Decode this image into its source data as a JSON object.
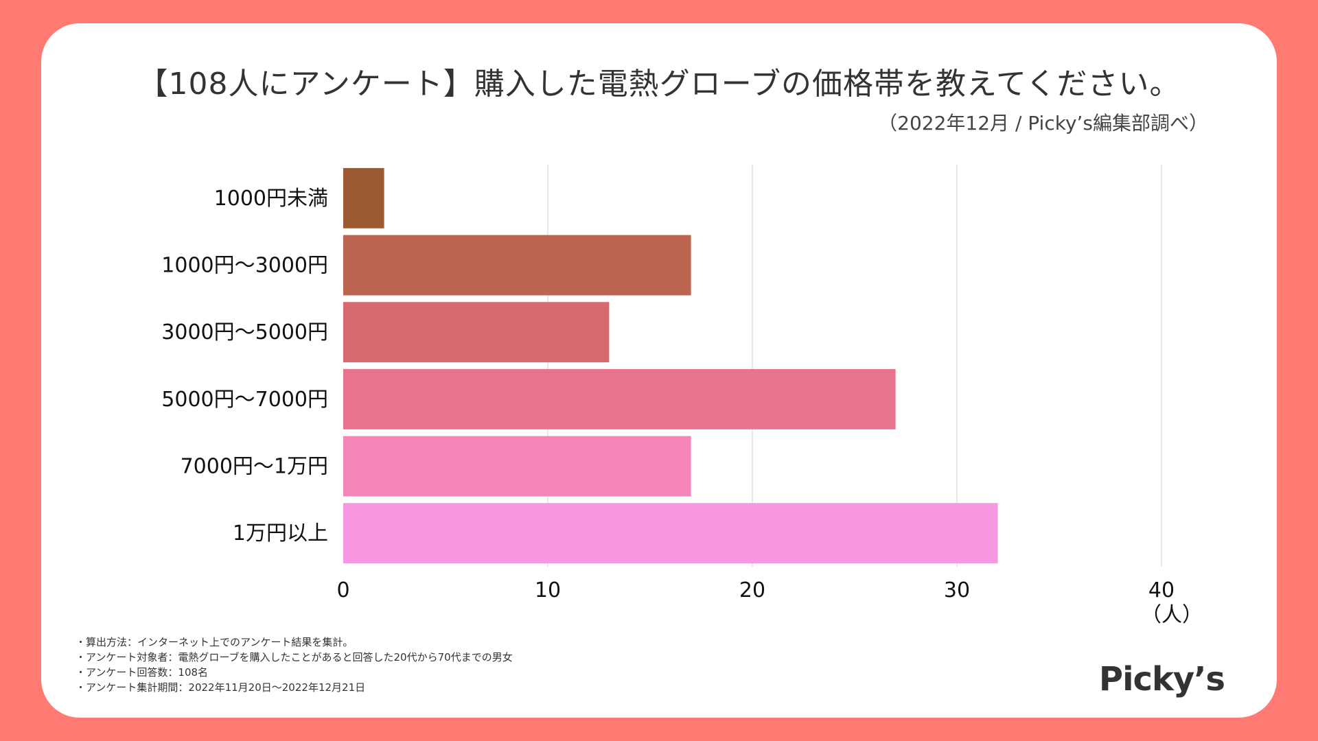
{
  "title": "【108人にアンケート】購入した電熱グローブの価格帯を教えてください。",
  "subtitle": "（2022年12月 / Picky’s編集部調べ）",
  "chart_data": {
    "type": "bar",
    "orientation": "horizontal",
    "categories": [
      "1000円未満",
      "1000円〜3000円",
      "3000円〜5000円",
      "5000円〜7000円",
      "7000円〜1万円",
      "1万円以上"
    ],
    "values": [
      2,
      17,
      13,
      27,
      17,
      32
    ],
    "colors": [
      "#9c5a32",
      "#bc6450",
      "#d76a6f",
      "#e8738f",
      "#f385b9",
      "#f797e1"
    ],
    "xlim": [
      0,
      40
    ],
    "xticks": [
      0,
      10,
      20,
      30,
      40
    ],
    "xlabel": "（人）",
    "ylabel": "",
    "grid": true,
    "legend": "none"
  },
  "notes": [
    "算出方法：インターネット上でのアンケート結果を集計。",
    "アンケート対象者：電熱グローブを購入したことがあると回答した20代から70代までの男女",
    "アンケート回答数：108名",
    "アンケート集計期間：2022年11月20日〜2022年12月21日"
  ],
  "logo": "Picky’s"
}
